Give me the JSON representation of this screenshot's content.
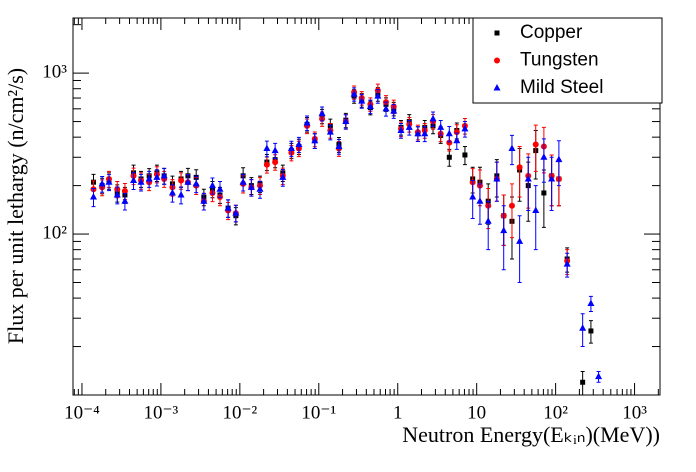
{
  "chart_data": {
    "type": "scatter",
    "ylabel": "Flux per unit lethargy (n/cm²/s)",
    "xlabel": "Neutron Energy(Eₖᵢₙ)(MeV))",
    "xlog": true,
    "ylog": true,
    "legend": "top-right",
    "xlim": [
      7.7e-05,
      2100
    ],
    "ylim": [
      10,
      2200
    ],
    "xticks": [
      {
        "value": 0.0001,
        "label": "10⁻⁴"
      },
      {
        "value": 0.001,
        "label": "10⁻³"
      },
      {
        "value": 0.01,
        "label": "10⁻²"
      },
      {
        "value": 0.1,
        "label": "10⁻¹"
      },
      1,
      10,
      {
        "value": 100,
        "label": "10²"
      },
      {
        "value": 1000,
        "label": "10³"
      }
    ],
    "yticks": [
      {
        "value": 100,
        "label": "10²"
      },
      {
        "value": 1000,
        "label": "10³"
      }
    ],
    "x": [
      0.00014,
      0.00018,
      0.00022,
      0.00028,
      0.00035,
      0.00045,
      0.00056,
      0.00071,
      0.00089,
      0.0011,
      0.0014,
      0.0018,
      0.0022,
      0.0028,
      0.0035,
      0.0045,
      0.0056,
      0.0071,
      0.0089,
      0.011,
      0.014,
      0.018,
      0.022,
      0.028,
      0.035,
      0.045,
      0.056,
      0.071,
      0.089,
      0.11,
      0.14,
      0.18,
      0.22,
      0.28,
      0.35,
      0.45,
      0.56,
      0.71,
      0.89,
      1.1,
      1.4,
      1.8,
      2.2,
      2.8,
      3.5,
      4.5,
      5.6,
      7.1,
      8.9,
      11,
      14,
      18,
      22,
      28,
      35,
      45,
      56,
      71,
      89,
      110,
      140,
      180,
      220,
      280,
      350
    ],
    "series": [
      {
        "name": "Copper",
        "color": "#000000",
        "marker": "square",
        "values": [
          210,
          200,
          215,
          180,
          175,
          240,
          220,
          230,
          240,
          230,
          205,
          220,
          230,
          225,
          170,
          190,
          175,
          145,
          130,
          230,
          200,
          205,
          280,
          290,
          240,
          330,
          350,
          480,
          380,
          540,
          470,
          360,
          510,
          720,
          680,
          610,
          740,
          640,
          600,
          460,
          500,
          420,
          460,
          470,
          410,
          300,
          440,
          310,
          220,
          210,
          160,
          230,
          130,
          120,
          250,
          200,
          330,
          180,
          230,
          220,
          70,
          null,
          12,
          25,
          null
        ],
        "errors": [
          25,
          22,
          25,
          22,
          20,
          28,
          25,
          25,
          28,
          26,
          24,
          25,
          26,
          26,
          20,
          22,
          20,
          18,
          16,
          28,
          24,
          24,
          32,
          32,
          28,
          36,
          38,
          50,
          40,
          55,
          48,
          38,
          52,
          70,
          66,
          60,
          72,
          62,
          58,
          48,
          52,
          44,
          48,
          50,
          44,
          36,
          50,
          40,
          40,
          50,
          45,
          60,
          45,
          50,
          90,
          80,
          110,
          70,
          80,
          70,
          12,
          null,
          2,
          4,
          null
        ]
      },
      {
        "name": "Tungsten",
        "color": "#ff0000",
        "marker": "circle",
        "values": [
          190,
          195,
          220,
          190,
          185,
          230,
          215,
          210,
          235,
          220,
          195,
          215,
          210,
          200,
          160,
          180,
          170,
          140,
          135,
          205,
          195,
          200,
          270,
          280,
          230,
          320,
          340,
          470,
          390,
          520,
          440,
          340,
          500,
          760,
          700,
          640,
          780,
          660,
          620,
          450,
          480,
          430,
          440,
          500,
          420,
          370,
          430,
          470,
          210,
          200,
          150,
          220,
          130,
          150,
          260,
          230,
          360,
          350,
          230,
          220,
          68,
          null,
          null,
          null,
          null
        ],
        "errors": [
          24,
          22,
          25,
          22,
          21,
          27,
          25,
          24,
          27,
          25,
          23,
          25,
          24,
          24,
          19,
          21,
          20,
          17,
          16,
          25,
          23,
          24,
          31,
          31,
          27,
          35,
          37,
          49,
          41,
          53,
          46,
          36,
          51,
          72,
          67,
          62,
          74,
          64,
          60,
          47,
          50,
          45,
          46,
          52,
          45,
          42,
          48,
          52,
          45,
          50,
          42,
          60,
          45,
          55,
          90,
          85,
          115,
          110,
          80,
          70,
          12,
          null,
          null,
          null,
          null
        ]
      },
      {
        "name": "Mild Steel",
        "color": "#0000ff",
        "marker": "triangle",
        "values": [
          170,
          205,
          210,
          175,
          160,
          215,
          210,
          220,
          225,
          230,
          180,
          175,
          210,
          205,
          160,
          200,
          190,
          145,
          135,
          210,
          195,
          190,
          340,
          330,
          225,
          340,
          360,
          490,
          380,
          560,
          430,
          350,
          500,
          740,
          670,
          620,
          720,
          600,
          580,
          440,
          460,
          420,
          420,
          520,
          460,
          420,
          380,
          450,
          170,
          160,
          120,
          220,
          105,
          340,
          90,
          220,
          140,
          300,
          220,
          290,
          65,
          null,
          26,
          37,
          13
        ],
        "errors": [
          22,
          23,
          24,
          21,
          19,
          26,
          25,
          25,
          26,
          26,
          22,
          21,
          24,
          24,
          19,
          23,
          22,
          18,
          16,
          25,
          23,
          23,
          38,
          36,
          27,
          37,
          39,
          51,
          40,
          56,
          45,
          37,
          51,
          70,
          65,
          60,
          70,
          60,
          57,
          46,
          48,
          44,
          45,
          53,
          48,
          46,
          44,
          50,
          45,
          45,
          40,
          60,
          45,
          70,
          40,
          80,
          60,
          90,
          80,
          90,
          11,
          null,
          6,
          4,
          1
        ]
      }
    ]
  }
}
